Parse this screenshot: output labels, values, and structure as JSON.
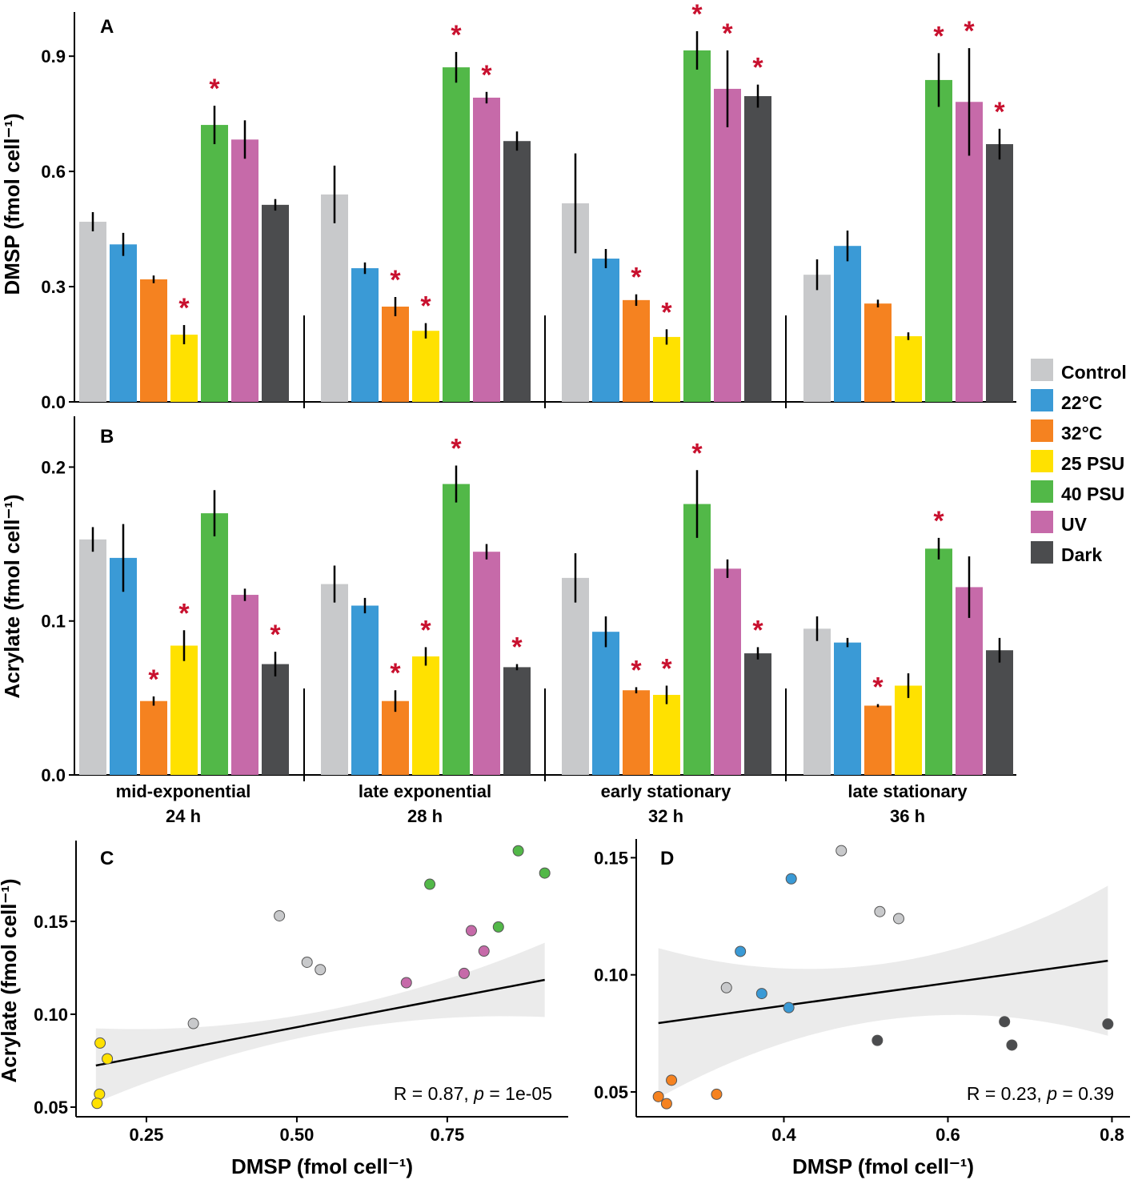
{
  "legend": {
    "entries": [
      "Control",
      "22°C",
      "32°C",
      "25 PSU",
      "40 PSU",
      "UV",
      "Dark"
    ],
    "colors": [
      "#c8c9cb",
      "#3a9ad6",
      "#f58220",
      "#ffe100",
      "#52b848",
      "#c66aa9",
      "#4b4c4e"
    ]
  },
  "asterisk_color": "#c8102e",
  "chart_data": [
    {
      "panel": "A",
      "type": "bar",
      "ylabel": "DMSP (fmol cell⁻¹)",
      "yticks": [
        0.0,
        0.3,
        0.6,
        0.9
      ],
      "ylim": [
        0,
        1.015
      ],
      "categories": [
        [
          "mid-exponential",
          "24 h"
        ],
        [
          "late exponential",
          "28 h"
        ],
        [
          "early stationary",
          "32 h"
        ],
        [
          "late stationary",
          "36 h"
        ]
      ],
      "values": [
        [
          0.469,
          0.41,
          0.319,
          0.175,
          0.721,
          0.683,
          0.513
        ],
        [
          0.54,
          0.348,
          0.248,
          0.185,
          0.871,
          0.792,
          0.679
        ],
        [
          0.517,
          0.373,
          0.265,
          0.169,
          0.915,
          0.815,
          0.796
        ],
        [
          0.331,
          0.406,
          0.256,
          0.171,
          0.838,
          0.781,
          0.671
        ]
      ],
      "errors": [
        [
          0.025,
          0.03,
          0.01,
          0.025,
          0.05,
          0.05,
          0.015
        ],
        [
          0.075,
          0.015,
          0.025,
          0.02,
          0.04,
          0.015,
          0.025
        ],
        [
          0.13,
          0.025,
          0.015,
          0.02,
          0.05,
          0.1,
          0.03
        ],
        [
          0.04,
          0.04,
          0.01,
          0.01,
          0.07,
          0.14,
          0.04
        ]
      ],
      "significant": [
        [
          0,
          0,
          0,
          1,
          1,
          0,
          0
        ],
        [
          0,
          0,
          1,
          1,
          1,
          1,
          0
        ],
        [
          0,
          0,
          1,
          1,
          1,
          1,
          1
        ],
        [
          0,
          0,
          0,
          0,
          1,
          1,
          1
        ]
      ]
    },
    {
      "panel": "B",
      "type": "bar",
      "ylabel": "Acrylate (fmol cell⁻¹)",
      "yticks": [
        0.0,
        0.1,
        0.2
      ],
      "ylim": [
        0,
        0.233
      ],
      "categories": [
        [
          "mid-exponential",
          "24 h"
        ],
        [
          "late exponential",
          "28 h"
        ],
        [
          "early stationary",
          "32 h"
        ],
        [
          "late stationary",
          "36 h"
        ]
      ],
      "values": [
        [
          0.153,
          0.141,
          0.048,
          0.084,
          0.17,
          0.117,
          0.072
        ],
        [
          0.124,
          0.11,
          0.048,
          0.077,
          0.189,
          0.145,
          0.07
        ],
        [
          0.128,
          0.093,
          0.055,
          0.052,
          0.176,
          0.134,
          0.079
        ],
        [
          0.095,
          0.086,
          0.045,
          0.058,
          0.147,
          0.122,
          0.081
        ]
      ],
      "errors": [
        [
          0.008,
          0.022,
          0.003,
          0.01,
          0.015,
          0.004,
          0.008
        ],
        [
          0.012,
          0.005,
          0.007,
          0.006,
          0.012,
          0.005,
          0.002
        ],
        [
          0.016,
          0.01,
          0.002,
          0.006,
          0.022,
          0.006,
          0.004
        ],
        [
          0.008,
          0.003,
          0.001,
          0.008,
          0.007,
          0.02,
          0.008
        ]
      ],
      "significant": [
        [
          0,
          0,
          1,
          1,
          0,
          0,
          1
        ],
        [
          0,
          0,
          1,
          1,
          1,
          0,
          1
        ],
        [
          0,
          0,
          1,
          1,
          1,
          0,
          1
        ],
        [
          0,
          0,
          1,
          0,
          1,
          0,
          0
        ]
      ]
    },
    {
      "panel": "C",
      "type": "scatter",
      "xlabel": "DMSP (fmol cell⁻¹)",
      "ylabel": "Acrylate (fmol cell⁻¹)",
      "xlim": [
        0.133,
        0.951
      ],
      "ylim": [
        0.0448,
        0.1935
      ],
      "xticks": [
        "0.25",
        "0.50",
        "0.75"
      ],
      "yticks": [
        "0.05",
        "0.10",
        "0.15"
      ],
      "annotation": {
        "r": "R = 0.87, ",
        "p_label": "p",
        "p_value": " = 1e-05"
      },
      "fit": [
        [
          0.166,
          0.0724
        ],
        [
          0.912,
          0.1185
        ]
      ],
      "points": [
        [
          0.173,
          0.0845,
          3
        ],
        [
          0.185,
          0.076,
          3
        ],
        [
          0.172,
          0.057,
          3
        ],
        [
          0.168,
          0.052,
          3
        ],
        [
          0.328,
          0.095,
          0
        ],
        [
          0.471,
          0.153,
          0
        ],
        [
          0.517,
          0.128,
          0
        ],
        [
          0.539,
          0.124,
          0
        ],
        [
          0.682,
          0.117,
          5
        ],
        [
          0.778,
          0.122,
          5
        ],
        [
          0.79,
          0.145,
          5
        ],
        [
          0.811,
          0.134,
          5
        ],
        [
          0.721,
          0.17,
          4
        ],
        [
          0.835,
          0.147,
          4
        ],
        [
          0.868,
          0.188,
          4
        ],
        [
          0.912,
          0.176,
          4
        ]
      ]
    },
    {
      "panel": "D",
      "type": "scatter",
      "xlabel": "DMSP (fmol cell⁻¹)",
      "ylabel": "",
      "xlim": [
        0.22,
        0.822
      ],
      "ylim": [
        0.0394,
        0.158
      ],
      "xticks": [
        "0.4",
        "0.6",
        "0.8"
      ],
      "yticks": [
        "0.05",
        "0.10",
        "0.15"
      ],
      "annotation": {
        "r": "R = 0.23, ",
        "p_label": "p",
        "p_value": " = 0.39"
      },
      "fit": [
        [
          0.247,
          0.0794
        ],
        [
          0.795,
          0.106
        ]
      ],
      "points": [
        [
          0.247,
          0.048,
          2
        ],
        [
          0.257,
          0.045,
          2
        ],
        [
          0.263,
          0.055,
          2
        ],
        [
          0.318,
          0.049,
          2
        ],
        [
          0.33,
          0.0945,
          0
        ],
        [
          0.47,
          0.153,
          0
        ],
        [
          0.517,
          0.127,
          0
        ],
        [
          0.54,
          0.124,
          0
        ],
        [
          0.347,
          0.11,
          1
        ],
        [
          0.373,
          0.092,
          1
        ],
        [
          0.406,
          0.086,
          1
        ],
        [
          0.409,
          0.141,
          1
        ],
        [
          0.514,
          0.072,
          6
        ],
        [
          0.669,
          0.08,
          6
        ],
        [
          0.678,
          0.07,
          6
        ],
        [
          0.795,
          0.079,
          6
        ]
      ]
    }
  ]
}
